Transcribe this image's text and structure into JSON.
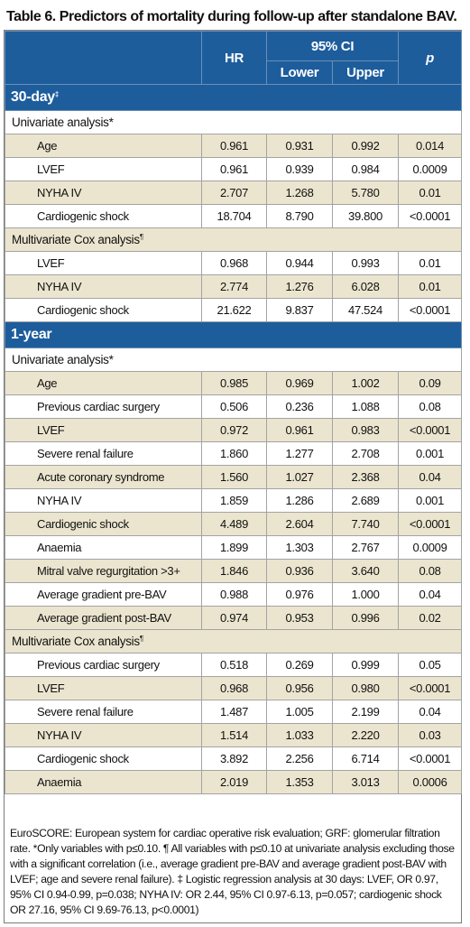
{
  "title": "Table 6. Predictors of mortality during follow-up after standalone BAV.",
  "header": {
    "hr": "HR",
    "ci": "95% CI",
    "lower": "Lower",
    "upper": "Upper",
    "p": "p"
  },
  "sections": [
    {
      "label": "30-day",
      "mark": "‡",
      "groups": [
        {
          "label": "Univariate analysis*",
          "mark": "",
          "rows": [
            [
              "Age",
              "0.961",
              "0.931",
              "0.992",
              "0.014"
            ],
            [
              "LVEF",
              "0.961",
              "0.939",
              "0.984",
              "0.0009"
            ],
            [
              "NYHA IV",
              "2.707",
              "1.268",
              "5.780",
              "0.01"
            ],
            [
              "Cardiogenic shock",
              "18.704",
              "8.790",
              "39.800",
              "<0.0001"
            ]
          ]
        },
        {
          "label": "Multivariate Cox analysis",
          "mark": "¶",
          "rows": [
            [
              "LVEF",
              "0.968",
              "0.944",
              "0.993",
              "0.01"
            ],
            [
              "NYHA IV",
              "2.774",
              "1.276",
              "6.028",
              "0.01"
            ],
            [
              "Cardiogenic shock",
              "21.622",
              "9.837",
              "47.524",
              "<0.0001"
            ]
          ]
        }
      ]
    },
    {
      "label": "1-year",
      "mark": "",
      "groups": [
        {
          "label": "Univariate analysis*",
          "mark": "",
          "rows": [
            [
              "Age",
              "0.985",
              "0.969",
              "1.002",
              "0.09"
            ],
            [
              "Previous cardiac surgery",
              "0.506",
              "0.236",
              "1.088",
              "0.08"
            ],
            [
              "LVEF",
              "0.972",
              "0.961",
              "0.983",
              "<0.0001"
            ],
            [
              "Severe renal failure",
              "1.860",
              "1.277",
              "2.708",
              "0.001"
            ],
            [
              "Acute coronary syndrome",
              "1.560",
              "1.027",
              "2.368",
              "0.04"
            ],
            [
              "NYHA IV",
              "1.859",
              "1.286",
              "2.689",
              "0.001"
            ],
            [
              "Cardiogenic shock",
              "4.489",
              "2.604",
              "7.740",
              "<0.0001"
            ],
            [
              "Anaemia",
              "1.899",
              "1.303",
              "2.767",
              "0.0009"
            ],
            [
              "Mitral valve regurgitation >3+",
              "1.846",
              "0.936",
              "3.640",
              "0.08"
            ],
            [
              "Average gradient pre-BAV",
              "0.988",
              "0.976",
              "1.000",
              "0.04"
            ],
            [
              "Average gradient post-BAV",
              "0.974",
              "0.953",
              "0.996",
              "0.02"
            ]
          ]
        },
        {
          "label": "Multivariate Cox analysis",
          "mark": "¶",
          "rows": [
            [
              "Previous cardiac surgery",
              "0.518",
              "0.269",
              "0.999",
              "0.05"
            ],
            [
              "LVEF",
              "0.968",
              "0.956",
              "0.980",
              "<0.0001"
            ],
            [
              "Severe renal failure",
              "1.487",
              "1.005",
              "2.199",
              "0.04"
            ],
            [
              "NYHA IV",
              "1.514",
              "1.033",
              "2.220",
              "0.03"
            ],
            [
              "Cardiogenic shock",
              "3.892",
              "2.256",
              "6.714",
              "<0.0001"
            ],
            [
              "Anaemia",
              "2.019",
              "1.353",
              "3.013",
              "0.0006"
            ]
          ]
        }
      ]
    }
  ],
  "footnote": "EuroSCORE: European system for cardiac operative risk evaluation; GRF: glomerular filtration rate. *Only variables with p≤0.10. ¶ All variables with p≤0.10 at univariate analysis excluding those with a significant correlation (i.e., average gradient pre-BAV and average gradient post-BAV with LVEF; age and severe renal failure). ‡ Logistic regression analysis at 30 days: LVEF, OR 0.97, 95% CI 0.94-0.99, p=0.038; NYHA IV: OR 2.44, 95% CI 0.97-6.13, p=0.057; cardiogenic shock OR 27.16, 95% CI 9.69-76.13, p<0.0001)"
}
